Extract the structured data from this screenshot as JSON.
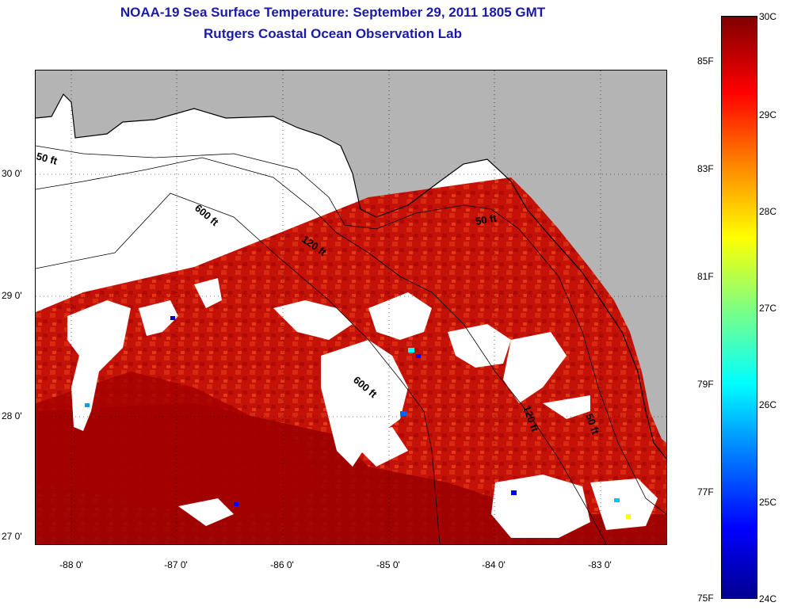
{
  "title_line1": "NOAA-19 Sea Surface Temperature:  September 29, 2011 1805 GMT",
  "title_line2": "Rutgers Coastal Ocean Observation Lab",
  "lat_labels": [
    "30 0'",
    "29 0'",
    "28 0'",
    "27 0'"
  ],
  "lon_labels": [
    "-88 0'",
    "-87 0'",
    "-86 0'",
    "-85 0'",
    "-84 0'",
    "-83 0'"
  ],
  "depth_labels": [
    "50 ft",
    "600 ft",
    "120 ft",
    "50 ft",
    "600 ft",
    "120 ft",
    "50 ft"
  ],
  "colorbar": {
    "fahrenheit": [
      "85F",
      "83F",
      "81F",
      "79F",
      "77F",
      "75F"
    ],
    "celsius": [
      "30C",
      "29C",
      "28C",
      "27C",
      "26C",
      "25C",
      "24C"
    ],
    "min_color": "#00008f",
    "max_color": "#800000"
  },
  "colors": {
    "land": "#b4b4b4",
    "cloud": "#ffffff",
    "warm_water": "#a00000",
    "title": "#1a1aa6"
  }
}
